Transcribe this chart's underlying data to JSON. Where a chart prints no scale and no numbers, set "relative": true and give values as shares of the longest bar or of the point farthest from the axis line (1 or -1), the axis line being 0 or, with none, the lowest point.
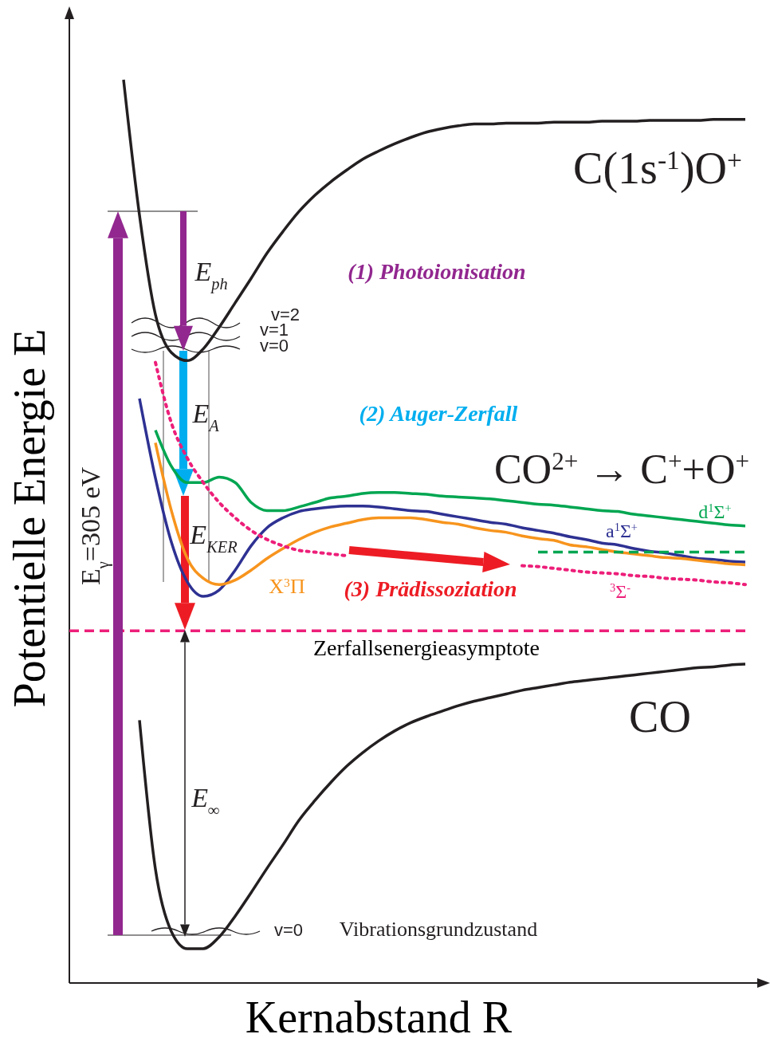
{
  "chart_data": {
    "type": "line",
    "relative": true,
    "xlabel": "Kernabstand R",
    "ylabel": "Potentielle Energie E",
    "legend": false,
    "marker": "none",
    "categories": [
      null,
      null,
      null,
      null,
      null,
      null,
      null,
      null,
      null,
      null,
      null,
      null,
      null,
      null,
      null,
      null,
      null,
      null,
      null,
      null,
      null,
      null,
      null,
      null,
      null,
      null,
      null,
      null,
      null,
      null,
      null,
      null,
      null,
      null,
      null,
      null,
      null,
      null,
      null,
      null
    ],
    "series": [
      {
        "name": "C(1s$^{-1}$)O$^{+}$",
        "color": "#231f20",
        "line_style": "solid",
        "values": [
          1.0,
          0.85,
          0.74,
          0.698,
          0.689,
          0.702,
          0.726,
          0.753,
          0.78,
          0.808,
          0.832,
          0.854,
          0.872,
          0.887,
          0.9,
          0.912,
          0.921,
          0.929,
          0.936,
          0.942,
          0.946,
          0.949,
          0.951,
          0.951,
          0.952,
          0.952,
          0.952,
          0.953,
          0.953,
          0.953,
          0.954,
          0.954,
          0.954,
          0.955,
          0.955,
          0.955,
          0.955,
          0.956,
          0.956,
          0.956
        ]
      },
      {
        "name": "CO",
        "color": "#231f20",
        "line_style": "solid",
        "values": [
          null,
          0.291,
          0.126,
          0.057,
          0.038,
          0.038,
          0.051,
          0.074,
          0.1,
          0.127,
          0.153,
          0.18,
          0.202,
          0.222,
          0.24,
          0.255,
          0.268,
          0.279,
          0.288,
          0.295,
          0.301,
          0.307,
          0.312,
          0.316,
          0.32,
          0.324,
          0.327,
          0.33,
          0.333,
          0.335,
          0.337,
          0.339,
          0.341,
          0.343,
          0.345,
          0.347,
          0.349,
          0.35,
          0.352,
          0.353
        ]
      },
      {
        "name": "d$^{1}$Σ$^{+}$",
        "color": "#00a651",
        "line_style": "solid",
        "values": [
          null,
          null,
          0.612,
          0.572,
          0.554,
          0.554,
          0.56,
          0.554,
          0.532,
          0.523,
          0.523,
          0.527,
          0.532,
          0.537,
          0.539,
          0.542,
          0.543,
          0.543,
          0.542,
          0.541,
          0.539,
          0.538,
          0.537,
          0.536,
          0.534,
          0.532,
          0.53,
          0.529,
          0.527,
          0.525,
          0.523,
          0.522,
          0.519,
          0.517,
          0.515,
          0.513,
          0.511,
          0.509,
          0.507,
          0.506
        ]
      },
      {
        "name": "a$^{1}$Σ$^{+}$",
        "color": "#2e3192",
        "line_style": "solid",
        "values": [
          null,
          0.647,
          0.559,
          0.488,
          0.444,
          0.428,
          0.435,
          0.457,
          0.484,
          0.504,
          0.515,
          0.522,
          0.525,
          0.527,
          0.528,
          0.528,
          0.527,
          0.525,
          0.523,
          0.522,
          0.519,
          0.516,
          0.513,
          0.51,
          0.508,
          0.504,
          0.501,
          0.498,
          0.494,
          0.491,
          0.487,
          0.485,
          0.481,
          0.478,
          0.476,
          0.473,
          0.47,
          0.469,
          0.467,
          0.466
        ]
      },
      {
        "name": "X$^{3}$Π",
        "color": "#f7941d",
        "line_style": "solid",
        "values": [
          null,
          null,
          0.598,
          0.523,
          0.47,
          0.448,
          0.441,
          0.446,
          0.457,
          0.47,
          0.481,
          0.491,
          0.499,
          0.505,
          0.509,
          0.513,
          0.515,
          0.515,
          0.515,
          0.513,
          0.51,
          0.508,
          0.504,
          0.501,
          0.499,
          0.495,
          0.492,
          0.49,
          0.485,
          0.483,
          0.48,
          0.477,
          0.475,
          0.473,
          0.471,
          0.47,
          0.468,
          0.466,
          0.464,
          0.463
        ]
      },
      {
        "name": "$^{3}$Σ$^{-}$",
        "color": "#ed1e79",
        "line_style": "dotted",
        "values": [
          null,
          null,
          0.687,
          0.62,
          0.581,
          0.554,
          0.532,
          0.515,
          0.501,
          0.491,
          0.484,
          0.479,
          0.477,
          0.475,
          0.473,
          null,
          null,
          null,
          null,
          null,
          null,
          null,
          null,
          null,
          null,
          0.462,
          0.461,
          0.459,
          0.457,
          0.455,
          0.454,
          0.453,
          0.451,
          0.45,
          0.448,
          0.447,
          0.446,
          0.444,
          0.443,
          0.441
        ]
      },
      {
        "color": "#00a651",
        "line_style": "dashed",
        "values": [
          null,
          null,
          null,
          null,
          null,
          null,
          null,
          null,
          null,
          null,
          null,
          null,
          null,
          null,
          null,
          null,
          null,
          null,
          null,
          null,
          null,
          null,
          null,
          null,
          null,
          null,
          0.477,
          0.477,
          0.477,
          0.477,
          0.477,
          0.477,
          0.477,
          0.477,
          0.477,
          0.477,
          0.477,
          0.477,
          0.477,
          0.477
        ]
      }
    ],
    "ref_lines": [
      {
        "axis": "y",
        "value": 0.39,
        "label": "Zerfallsenergieasymptote",
        "color": "#ed1e79",
        "line_style": "dashed"
      }
    ],
    "annotations": [
      "(1) Photoionisation",
      "(2) Auger-Zerfall",
      "(3) Prädissoziation",
      "CO$^{2+}$ → C$^{+}$+O$^{+}$",
      "E$_{ph}$",
      "E$_{A}$",
      "E$_{KER}$",
      "E$_{∞}$",
      "E$_{γ}$=305 eV",
      "v=2",
      "v=1",
      "v=0",
      "v=0",
      "Vibrationsgrundzustand"
    ]
  }
}
